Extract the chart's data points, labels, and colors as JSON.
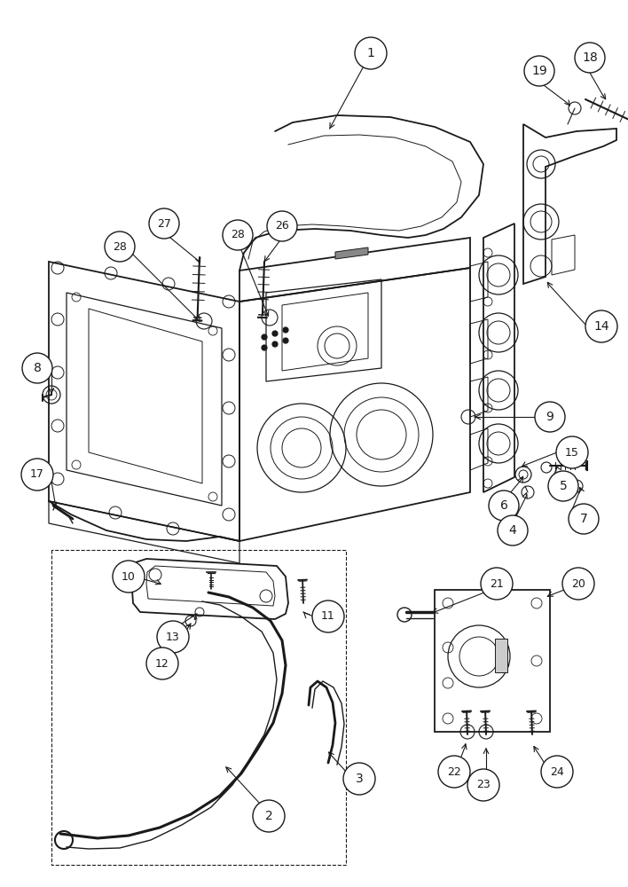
{
  "background_color": "#ffffff",
  "line_color": "#1a1a1a",
  "label_color": "#000000"
}
